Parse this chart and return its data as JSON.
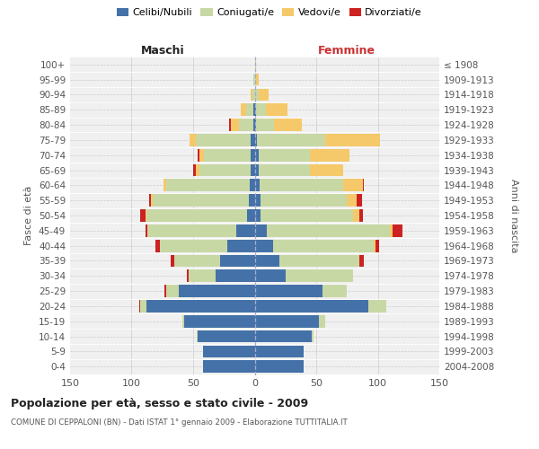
{
  "age_groups": [
    "0-4",
    "5-9",
    "10-14",
    "15-19",
    "20-24",
    "25-29",
    "30-34",
    "35-39",
    "40-44",
    "45-49",
    "50-54",
    "55-59",
    "60-64",
    "65-69",
    "70-74",
    "75-79",
    "80-84",
    "85-89",
    "90-94",
    "95-99",
    "100+"
  ],
  "birth_years": [
    "2004-2008",
    "1999-2003",
    "1994-1998",
    "1989-1993",
    "1984-1988",
    "1979-1983",
    "1974-1978",
    "1969-1973",
    "1964-1968",
    "1959-1963",
    "1954-1958",
    "1949-1953",
    "1944-1948",
    "1939-1943",
    "1934-1938",
    "1929-1933",
    "1924-1928",
    "1919-1923",
    "1914-1918",
    "1909-1913",
    "≤ 1908"
  ],
  "male_celibe": [
    42,
    42,
    46,
    57,
    88,
    62,
    32,
    28,
    22,
    15,
    6,
    5,
    4,
    3,
    3,
    3,
    1,
    1,
    0,
    0,
    0
  ],
  "male_coniugato": [
    0,
    0,
    1,
    2,
    5,
    10,
    22,
    37,
    55,
    72,
    82,
    78,
    68,
    42,
    38,
    45,
    12,
    6,
    2,
    1,
    0
  ],
  "male_vedovo": [
    0,
    0,
    0,
    0,
    0,
    0,
    0,
    0,
    0,
    0,
    1,
    1,
    2,
    3,
    4,
    5,
    6,
    4,
    1,
    0,
    0
  ],
  "male_divorziato": [
    0,
    0,
    0,
    0,
    1,
    1,
    1,
    3,
    4,
    2,
    4,
    2,
    0,
    2,
    1,
    0,
    2,
    0,
    0,
    0,
    0
  ],
  "female_nubile": [
    40,
    40,
    46,
    52,
    92,
    55,
    25,
    20,
    15,
    10,
    5,
    5,
    4,
    3,
    3,
    2,
    1,
    1,
    0,
    0,
    0
  ],
  "female_coniugata": [
    0,
    0,
    2,
    5,
    15,
    20,
    55,
    65,
    82,
    100,
    75,
    70,
    68,
    42,
    42,
    55,
    15,
    8,
    3,
    1,
    0
  ],
  "female_vedova": [
    0,
    0,
    0,
    0,
    0,
    0,
    0,
    0,
    1,
    2,
    5,
    8,
    16,
    27,
    32,
    45,
    22,
    18,
    8,
    2,
    1
  ],
  "female_divorziata": [
    0,
    0,
    0,
    0,
    0,
    0,
    0,
    4,
    3,
    8,
    3,
    4,
    1,
    0,
    0,
    0,
    0,
    0,
    0,
    0,
    0
  ],
  "colors_celibe": "#4472a8",
  "colors_coniugato": "#c8d8a5",
  "colors_vedovo": "#f5c96a",
  "colors_divorziato": "#cc2222",
  "xlim": 150,
  "title": "Popolazione per età, sesso e stato civile - 2009",
  "subtitle": "COMUNE DI CEPPALONI (BN) - Dati ISTAT 1° gennaio 2009 - Elaborazione TUTTITALIA.IT",
  "ylabel_left": "Fasce di età",
  "ylabel_right": "Anni di nascita",
  "label_maschi": "Maschi",
  "label_femmine": "Femmine",
  "bg_color": "#f0f0f0",
  "grid_color": "#d0d0d0",
  "legend_labels": [
    "Celibi/Nubili",
    "Coniugati/e",
    "Vedovi/e",
    "Divorziati/e"
  ]
}
